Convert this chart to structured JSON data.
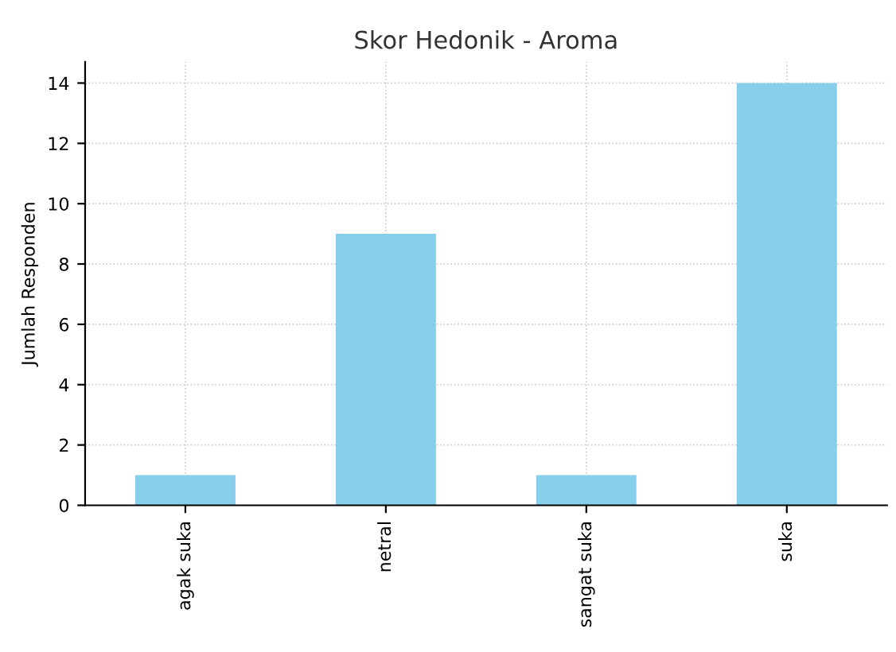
{
  "chart_data": {
    "type": "bar",
    "title": "Skor Hedonik - Aroma",
    "ylabel": "Jumlah Responden",
    "categories": [
      "agak suka",
      "netral",
      "sangat suka",
      "suka"
    ],
    "values": [
      1,
      9,
      1,
      14
    ],
    "color": "#87ceeb",
    "ylim": [
      0,
      14.7
    ],
    "yticks": [
      0,
      2,
      4,
      6,
      8,
      10,
      12,
      14
    ],
    "grid": true
  }
}
